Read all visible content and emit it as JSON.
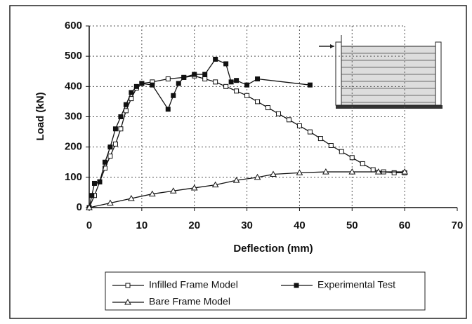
{
  "chart_data": {
    "type": "line",
    "x_label": "Deflection (mm)",
    "y_label": "Load (kN)",
    "xlim": [
      0,
      70
    ],
    "xticks": [
      0,
      10,
      20,
      30,
      40,
      50,
      60,
      70
    ],
    "ylim": [
      0,
      600
    ],
    "yticks": [
      0,
      100,
      200,
      300,
      400,
      500,
      600
    ],
    "grid": true,
    "series": [
      {
        "name": "Infilled Frame Model",
        "color": "#111111",
        "marker": "open-square",
        "x": [
          0,
          1,
          2,
          3,
          4,
          5,
          6,
          7,
          8,
          9,
          10,
          12,
          15,
          18,
          20,
          22,
          24,
          26,
          28,
          30,
          32,
          34,
          36,
          38,
          40,
          42,
          44,
          46,
          48,
          50,
          52,
          54,
          56,
          58,
          60
        ],
        "values": [
          0,
          40,
          85,
          130,
          170,
          210,
          260,
          320,
          360,
          395,
          410,
          415,
          425,
          430,
          435,
          425,
          415,
          400,
          385,
          370,
          350,
          330,
          310,
          290,
          270,
          250,
          228,
          205,
          185,
          165,
          145,
          125,
          118,
          115,
          115
        ]
      },
      {
        "name": "Experimental Test",
        "color": "#111111",
        "marker": "filled-square",
        "x": [
          0,
          0.5,
          1,
          2,
          3,
          4,
          5,
          6,
          7,
          8,
          9,
          10,
          12,
          15,
          16,
          17,
          18,
          20,
          22,
          24,
          26,
          27,
          28,
          30,
          32,
          42
        ],
        "values": [
          0,
          40,
          80,
          85,
          150,
          200,
          260,
          300,
          340,
          380,
          400,
          410,
          405,
          325,
          370,
          410,
          430,
          440,
          440,
          490,
          475,
          415,
          420,
          405,
          425,
          405
        ]
      },
      {
        "name": "Bare Frame Model",
        "color": "#111111",
        "marker": "triangle",
        "x": [
          0,
          4,
          8,
          12,
          16,
          20,
          24,
          28,
          32,
          35,
          40,
          45,
          50,
          55,
          60
        ],
        "values": [
          0,
          15,
          30,
          45,
          55,
          65,
          75,
          90,
          100,
          110,
          115,
          118,
          118,
          118,
          118
        ]
      }
    ]
  }
}
